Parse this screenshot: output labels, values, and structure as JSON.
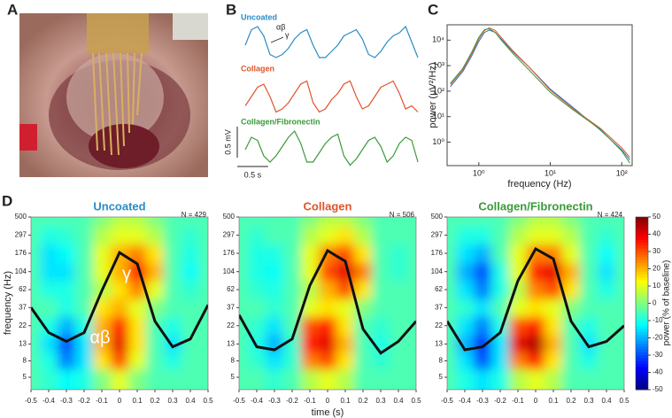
{
  "panel_labels": [
    "A",
    "B",
    "C",
    "D"
  ],
  "chart_data": [
    {
      "type": "traces",
      "x": [
        0,
        0.1,
        0.2,
        0.3,
        0.4,
        0.5,
        0.6,
        0.7,
        0.8,
        0.9,
        1,
        1.1,
        1.2,
        1.3,
        1.4,
        1.5,
        1.6,
        1.7,
        1.8,
        1.9,
        2,
        2.1,
        2.2,
        2.3,
        2.4,
        2.5,
        2.6,
        2.7,
        2.8
      ],
      "annotations": [
        "αβ",
        "γ"
      ],
      "scale_bar": {
        "x": {
          "value": 0.5,
          "label": "0.5 s"
        },
        "y": {
          "value": 0.5,
          "label": "0.5 mV"
        }
      },
      "series": [
        {
          "name": "Uncoated",
          "color": "#2b8cc4",
          "values": [
            0.3,
            0.55,
            0.6,
            0.45,
            0.15,
            0.1,
            0.15,
            0.25,
            0.4,
            0.5,
            0.55,
            0.3,
            0.1,
            0.1,
            0.2,
            0.3,
            0.45,
            0.5,
            0.55,
            0.4,
            0.15,
            0.1,
            0.2,
            0.35,
            0.45,
            0.5,
            0.6,
            0.35,
            0.1
          ]
        },
        {
          "name": "Collagen",
          "color": "#e0542a",
          "values": [
            0.15,
            0.3,
            0.45,
            0.5,
            0.3,
            0.05,
            0.1,
            0.2,
            0.35,
            0.5,
            0.55,
            0.2,
            0.05,
            0.1,
            0.25,
            0.35,
            0.5,
            0.55,
            0.3,
            0.1,
            0.15,
            0.3,
            0.45,
            0.5,
            0.55,
            0.35,
            0.1,
            0.15,
            0.05
          ]
        },
        {
          "name": "Collagen/Fibronectin",
          "color": "#3a9a3a",
          "values": [
            0.3,
            0.5,
            0.45,
            0.2,
            0.1,
            0.2,
            0.35,
            0.5,
            0.6,
            0.4,
            0.1,
            0.1,
            0.25,
            0.4,
            0.5,
            0.55,
            0.2,
            0.05,
            0.15,
            0.3,
            0.45,
            0.5,
            0.35,
            0.1,
            0.2,
            0.4,
            0.5,
            0.45,
            0.1
          ]
        }
      ]
    },
    {
      "type": "line",
      "log_x": true,
      "log_y": true,
      "x_label": "frequency (Hz)",
      "y_label": "power (µV²/Hz)",
      "x": [
        0.4,
        0.6,
        0.8,
        1,
        1.2,
        1.4,
        1.7,
        2,
        3,
        5,
        10,
        20,
        50,
        100,
        130
      ],
      "xlim": [
        0.36,
        140
      ],
      "ylim": [
        0.12,
        40000
      ],
      "xticks": [
        {
          "value": 1,
          "label": "10⁰"
        },
        {
          "value": 10,
          "label": "10¹"
        },
        {
          "value": 100,
          "label": "10²"
        }
      ],
      "yticks": [
        {
          "value": 1,
          "label": "10⁰"
        },
        {
          "value": 10,
          "label": "10¹"
        },
        {
          "value": 100,
          "label": "10²"
        },
        {
          "value": 1000,
          "label": "10³"
        },
        {
          "value": 10000,
          "label": "10⁴"
        }
      ],
      "series": [
        {
          "name": "Uncoated",
          "color": "#2b6cc4",
          "values": [
            150,
            600,
            2500,
            9000,
            20000,
            25000,
            20000,
            12000,
            3500,
            900,
            120,
            25,
            3,
            0.5,
            0.2
          ]
        },
        {
          "name": "Collagen",
          "color": "#e0542a",
          "values": [
            180,
            700,
            3000,
            11000,
            24000,
            30000,
            24000,
            14000,
            3800,
            900,
            110,
            22,
            3.5,
            0.6,
            0.25
          ]
        },
        {
          "name": "Collagen/Fibronectin",
          "color": "#3a9a3a",
          "values": [
            200,
            800,
            3500,
            13000,
            26000,
            28000,
            20000,
            11000,
            3000,
            700,
            90,
            20,
            3.2,
            0.45,
            0.15
          ]
        }
      ]
    },
    {
      "type": "heatmap",
      "x_label": "time (s)",
      "y_label": "frequency (Hz)",
      "colorbar_label": "power (% of baseline)",
      "x": [
        -0.5,
        -0.4,
        -0.3,
        -0.2,
        -0.1,
        0,
        0.1,
        0.2,
        0.3,
        0.4,
        0.5
      ],
      "y": [
        5,
        8,
        13,
        22,
        37,
        62,
        104,
        176,
        297,
        500
      ],
      "xlim": [
        -0.5,
        0.5
      ],
      "ylim": [
        3.5,
        500
      ],
      "xticks": [
        -0.5,
        -0.4,
        -0.3,
        -0.2,
        -0.1,
        0,
        0.1,
        0.2,
        0.3,
        0.4,
        0.5
      ],
      "yticks": [
        5,
        8,
        13,
        22,
        37,
        62,
        104,
        176,
        297,
        500
      ],
      "zlim": [
        -50,
        50
      ],
      "zticks": [
        -50,
        -40,
        -30,
        -20,
        -10,
        0,
        10,
        20,
        30,
        40,
        50
      ],
      "panels": [
        {
          "title": "Uncoated",
          "title_color": "#2b8cc4",
          "n_label": "N = 429",
          "annotations": [
            "γ",
            "αβ"
          ],
          "overlay": [
            37,
            18,
            14,
            18,
            60,
            180,
            130,
            25,
            12,
            15,
            40
          ],
          "z": [
            [
              -5,
              -8,
              -12,
              -10,
              0,
              10,
              0,
              -5,
              -5,
              -5,
              -5
            ],
            [
              -5,
              -10,
              -25,
              -15,
              15,
              30,
              10,
              -5,
              -10,
              -5,
              -5
            ],
            [
              -5,
              -15,
              -30,
              -15,
              20,
              40,
              15,
              -5,
              -15,
              -5,
              -5
            ],
            [
              -5,
              -10,
              -20,
              -10,
              20,
              35,
              15,
              -5,
              -10,
              -5,
              -5
            ],
            [
              -5,
              -5,
              -10,
              -5,
              15,
              20,
              10,
              0,
              -5,
              -5,
              -5
            ],
            [
              -5,
              -10,
              -10,
              -5,
              5,
              15,
              25,
              10,
              -5,
              -8,
              -5
            ],
            [
              -5,
              -15,
              -15,
              -5,
              10,
              20,
              35,
              20,
              -5,
              -12,
              -5
            ],
            [
              -5,
              -15,
              -12,
              -5,
              10,
              20,
              25,
              15,
              -5,
              -10,
              -5
            ],
            [
              -5,
              -10,
              -8,
              -5,
              5,
              10,
              10,
              5,
              -5,
              -8,
              -5
            ],
            [
              -5,
              -5,
              -5,
              -5,
              0,
              5,
              5,
              0,
              -5,
              -5,
              -5
            ]
          ]
        },
        {
          "title": "Collagen",
          "title_color": "#e0542a",
          "n_label": "N = 506",
          "overlay": [
            30,
            12,
            11,
            15,
            70,
            190,
            140,
            20,
            10,
            14,
            25
          ],
          "z": [
            [
              -5,
              -5,
              -8,
              -5,
              5,
              10,
              5,
              -5,
              -5,
              -5,
              -5
            ],
            [
              -5,
              -8,
              -15,
              -8,
              25,
              30,
              15,
              -5,
              -8,
              -5,
              -5
            ],
            [
              -5,
              -10,
              -20,
              -8,
              35,
              40,
              20,
              -5,
              -10,
              -5,
              -5
            ],
            [
              -5,
              -8,
              -15,
              -5,
              30,
              35,
              15,
              -5,
              -8,
              -5,
              -5
            ],
            [
              -5,
              -5,
              -8,
              -5,
              10,
              15,
              10,
              0,
              -5,
              -5,
              -5
            ],
            [
              -5,
              -8,
              -10,
              -5,
              5,
              20,
              30,
              15,
              -5,
              -5,
              -5
            ],
            [
              -5,
              -10,
              -12,
              -5,
              10,
              30,
              40,
              25,
              -5,
              -8,
              -5
            ],
            [
              -5,
              -10,
              -10,
              -5,
              10,
              25,
              30,
              15,
              -5,
              -8,
              -5
            ],
            [
              -5,
              -8,
              -5,
              -5,
              5,
              10,
              15,
              5,
              -5,
              -5,
              -5
            ],
            [
              -5,
              -5,
              -5,
              -5,
              0,
              5,
              5,
              0,
              -5,
              -5,
              -5
            ]
          ]
        },
        {
          "title": "Collagen/Fibronectin",
          "title_color": "#3a9a3a",
          "n_label": "N = 424",
          "overlay": [
            25,
            11,
            12,
            18,
            80,
            200,
            150,
            25,
            12,
            14,
            22
          ],
          "z": [
            [
              -5,
              -10,
              -15,
              -10,
              5,
              10,
              5,
              -5,
              -5,
              -5,
              -5
            ],
            [
              -5,
              -15,
              -30,
              -15,
              25,
              35,
              15,
              -5,
              -10,
              -5,
              -5
            ],
            [
              -5,
              -20,
              -35,
              -15,
              40,
              45,
              20,
              -5,
              -15,
              -5,
              -5
            ],
            [
              -5,
              -15,
              -25,
              -10,
              30,
              35,
              15,
              -5,
              -10,
              -5,
              -5
            ],
            [
              -5,
              -8,
              -15,
              -5,
              10,
              15,
              10,
              0,
              -5,
              -5,
              -5
            ],
            [
              -5,
              -15,
              -25,
              -10,
              5,
              25,
              30,
              15,
              -5,
              -10,
              -5
            ],
            [
              -5,
              -20,
              -30,
              -10,
              10,
              35,
              40,
              20,
              -5,
              -15,
              -5
            ],
            [
              -5,
              -15,
              -20,
              -5,
              10,
              25,
              25,
              10,
              -5,
              -12,
              -5
            ],
            [
              -5,
              -10,
              -10,
              -5,
              5,
              10,
              10,
              5,
              -5,
              -8,
              -5
            ],
            [
              -5,
              -5,
              -5,
              -5,
              0,
              5,
              5,
              0,
              -5,
              -5,
              -5
            ]
          ]
        }
      ]
    }
  ]
}
